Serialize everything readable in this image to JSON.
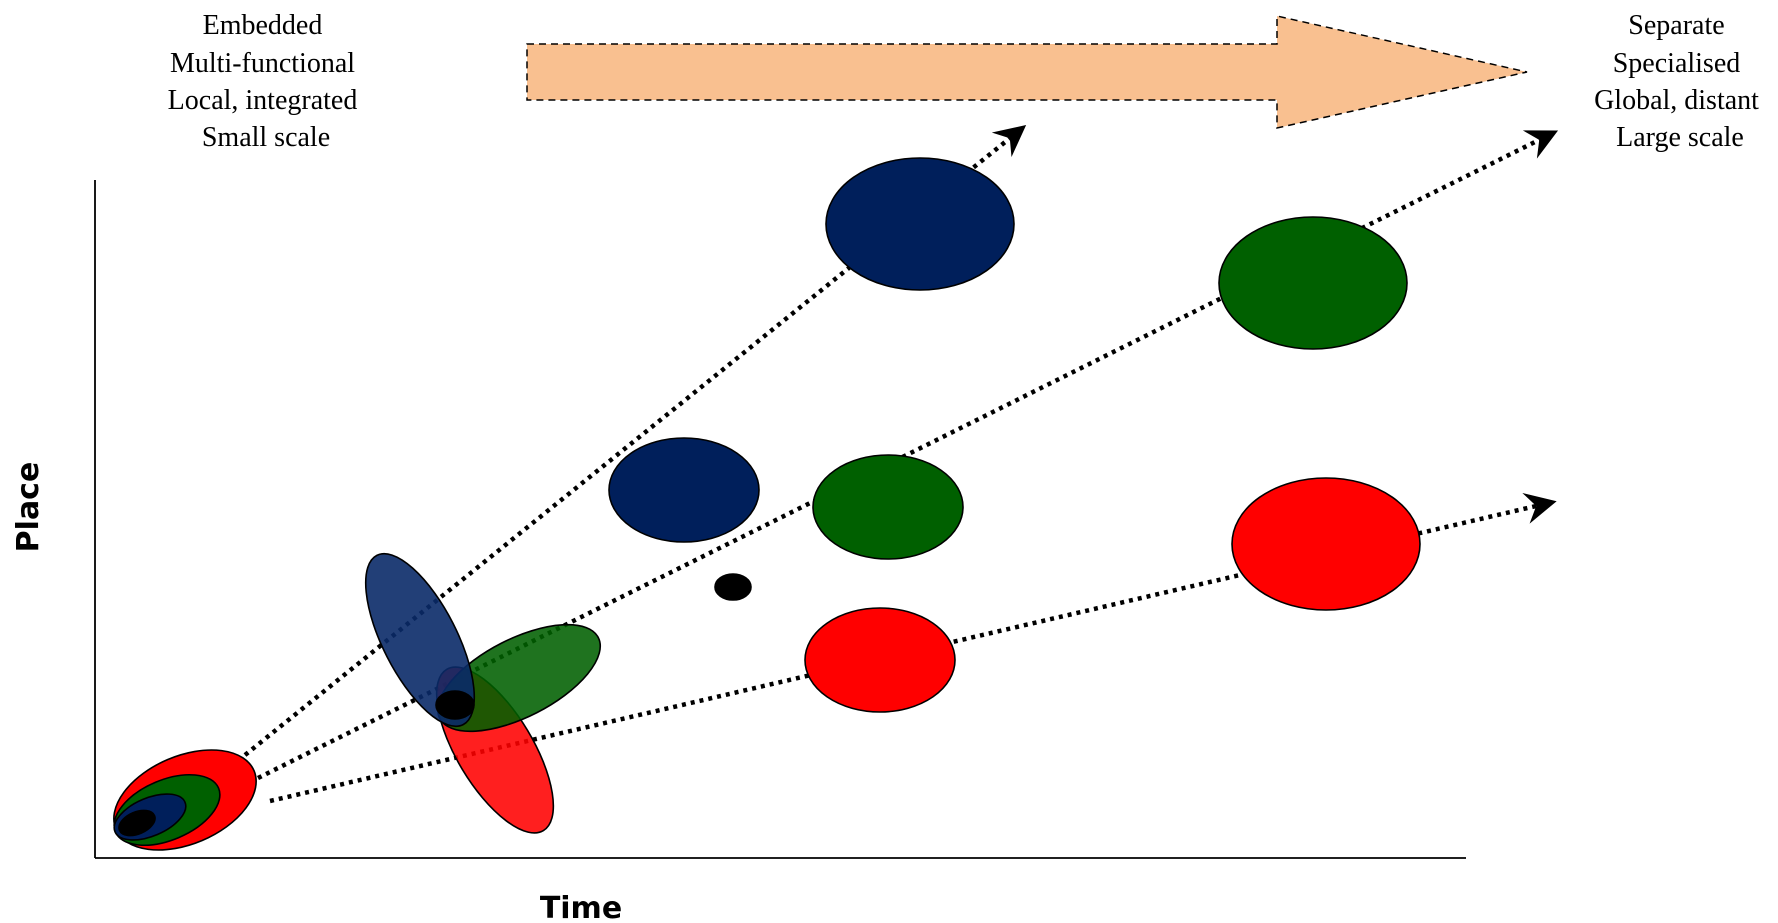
{
  "left_labels": [
    "Embedded",
    "Multi-functional",
    "Local, integrated",
    "Small scale"
  ],
  "right_labels": [
    "Separate",
    "Specialised",
    "Global, distant",
    "Large scale"
  ],
  "axes": {
    "x_label": "Time",
    "y_label": "Place"
  },
  "colors": {
    "arrow_fill": "#f9c090",
    "blue": "#001f5b",
    "blue_translucent": "#0a2a68",
    "green": "#006000",
    "red": "#ff0000",
    "black": "#000000"
  }
}
